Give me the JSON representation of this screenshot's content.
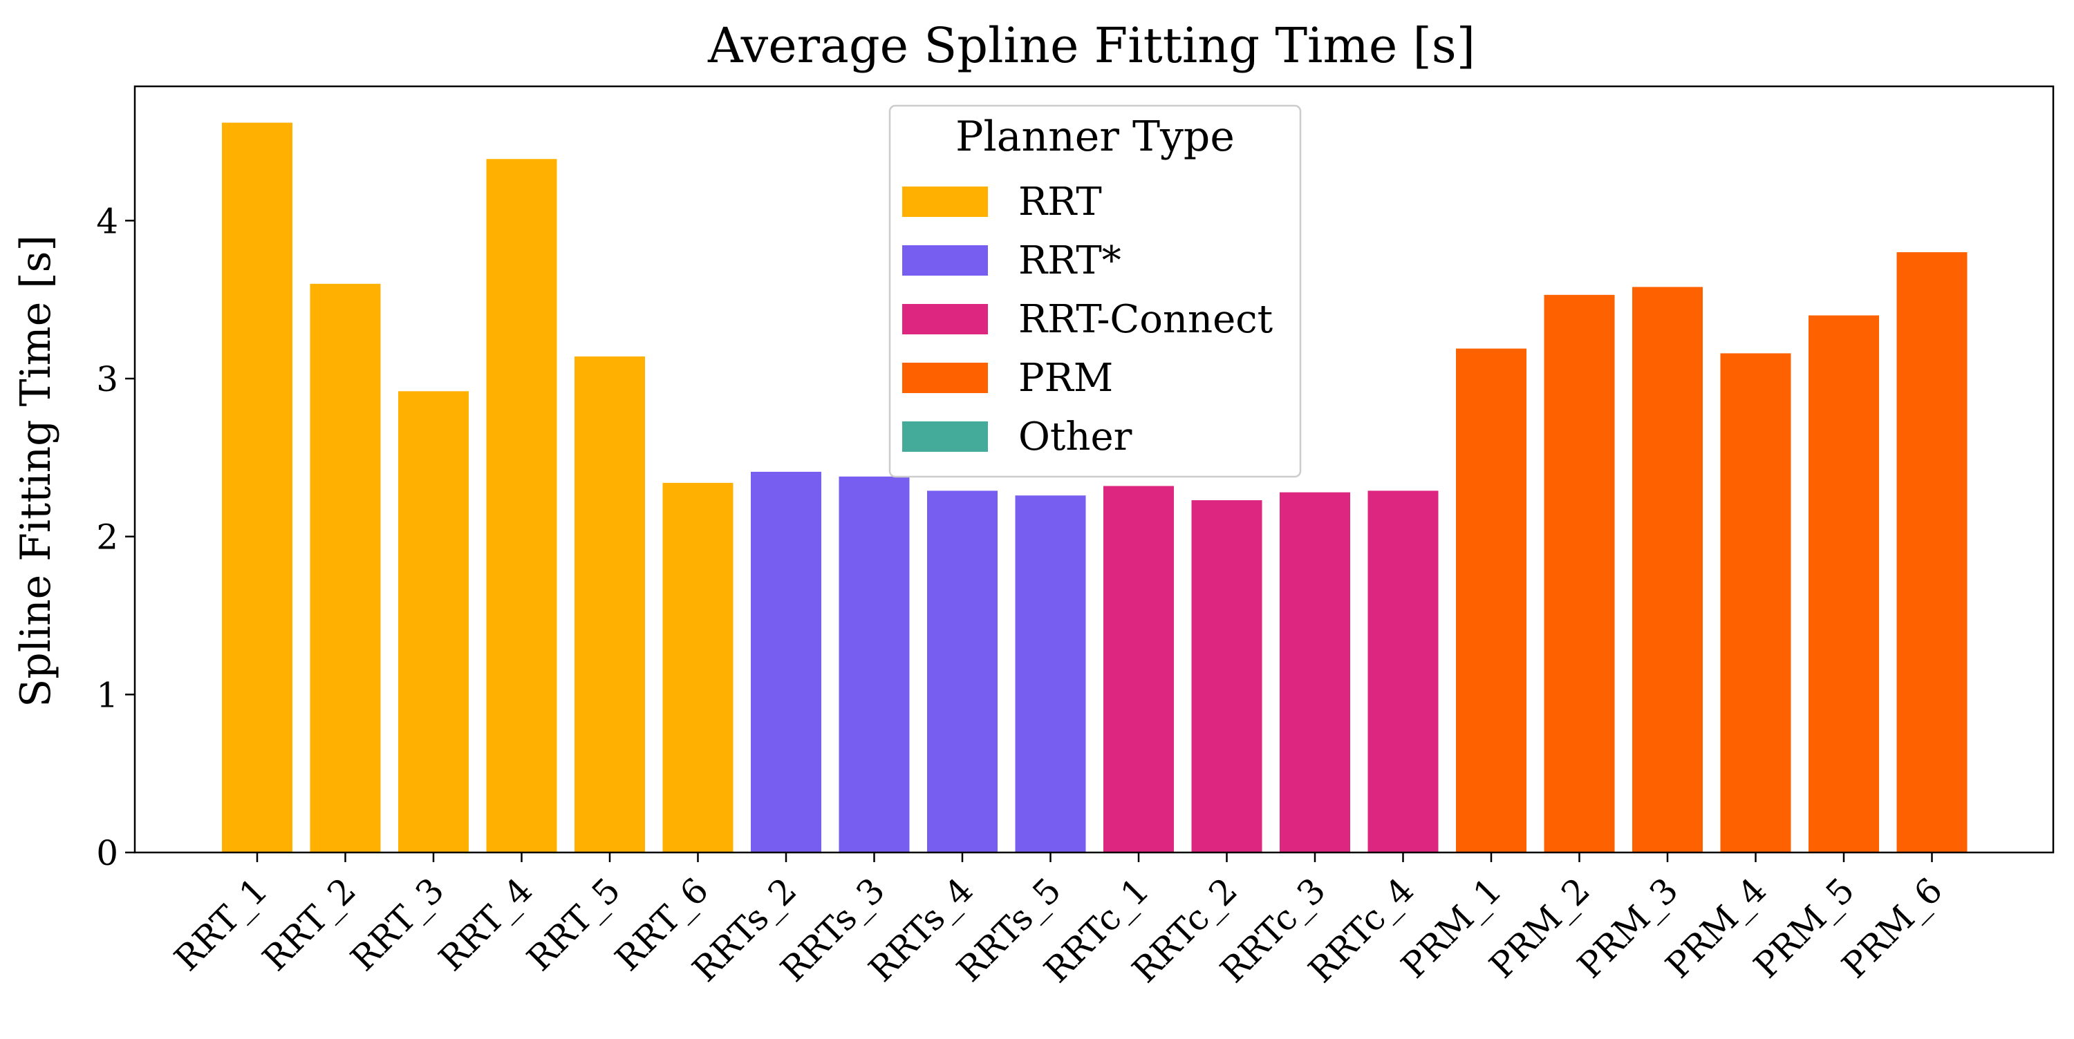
{
  "chart_data": {
    "type": "bar",
    "title": "Average Spline Fitting Time [s]",
    "xlabel": "",
    "ylabel": "Spline Fitting Time [s]",
    "ylim": [
      0,
      4.85
    ],
    "yticks": [
      0,
      1,
      2,
      3,
      4
    ],
    "grid": false,
    "legend": {
      "title": "Planner Type",
      "placement": "top-center",
      "entries": [
        {
          "label": "RRT",
          "color": "#FFB000"
        },
        {
          "label": "RRT*",
          "color": "#785EF0"
        },
        {
          "label": "RRT-Connect",
          "color": "#DC267F"
        },
        {
          "label": "PRM",
          "color": "#FE6100"
        },
        {
          "label": "Other",
          "color": "#44AA99"
        }
      ]
    },
    "categories": [
      "RRT_1",
      "RRT_2",
      "RRT_3",
      "RRT_4",
      "RRT_5",
      "RRT_6",
      "RRTs_2",
      "RRTs_3",
      "RRTs_4",
      "RRTs_5",
      "RRTc_1",
      "RRTc_2",
      "RRTc_3",
      "RRTc_4",
      "PRM_1",
      "PRM_2",
      "PRM_3",
      "PRM_4",
      "PRM_5",
      "PRM_6"
    ],
    "values": [
      4.62,
      3.6,
      2.92,
      4.39,
      3.14,
      2.34,
      2.41,
      2.38,
      2.29,
      2.26,
      2.32,
      2.23,
      2.28,
      2.29,
      3.19,
      3.53,
      3.58,
      3.16,
      3.4,
      3.8
    ],
    "groups": [
      "RRT",
      "RRT",
      "RRT",
      "RRT",
      "RRT",
      "RRT",
      "RRT*",
      "RRT*",
      "RRT*",
      "RRT*",
      "RRT-Connect",
      "RRT-Connect",
      "RRT-Connect",
      "RRT-Connect",
      "PRM",
      "PRM",
      "PRM",
      "PRM",
      "PRM",
      "PRM"
    ]
  }
}
